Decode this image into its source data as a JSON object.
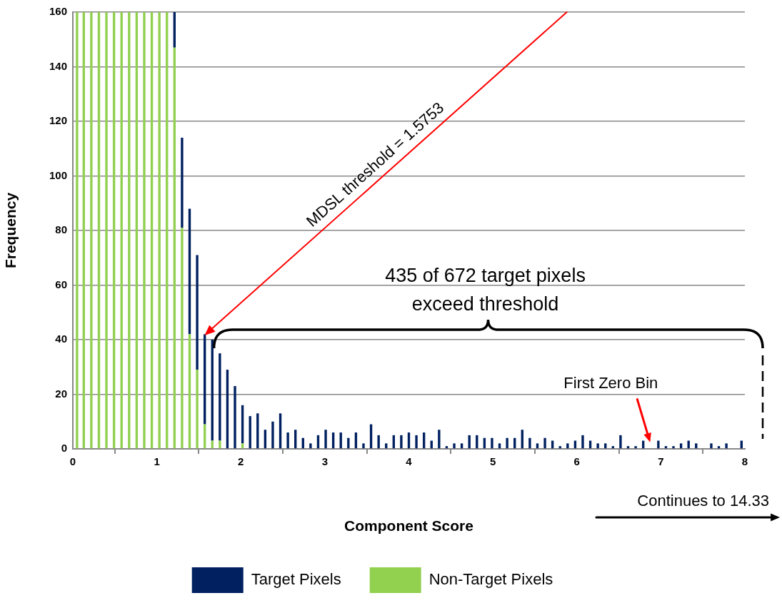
{
  "chart_data": {
    "type": "bar",
    "xlabel": "Component Score",
    "ylabel": "Frequency",
    "x": [
      0.05,
      0.13,
      0.22,
      0.31,
      0.4,
      0.49,
      0.58,
      0.67,
      0.76,
      0.85,
      0.94,
      1.03,
      1.12,
      1.21,
      1.3,
      1.39,
      1.48,
      1.57,
      1.66,
      1.75,
      1.84,
      1.93,
      2.02,
      2.11,
      2.2,
      2.29,
      2.38,
      2.47,
      2.56,
      2.65,
      2.74,
      2.83,
      2.92,
      3.01,
      3.1,
      3.19,
      3.28,
      3.37,
      3.46,
      3.55,
      3.64,
      3.73,
      3.82,
      3.91,
      4.0,
      4.09,
      4.18,
      4.27,
      4.36,
      4.45,
      4.54,
      4.63,
      4.72,
      4.81,
      4.9,
      4.99,
      5.08,
      5.17,
      5.26,
      5.35,
      5.44,
      5.53,
      5.62,
      5.71,
      5.8,
      5.89,
      5.98,
      6.07,
      6.16,
      6.25,
      6.34,
      6.43,
      6.52,
      6.61,
      6.7,
      6.79,
      6.88,
      6.97,
      7.06,
      7.15,
      7.24,
      7.33,
      7.42,
      7.51,
      7.6,
      7.69,
      7.78,
      7.87,
      7.96
    ],
    "stacked": true,
    "series": [
      {
        "name": "Non-Target Pixels",
        "color": "#92d050",
        "values": [
          160,
          160,
          160,
          160,
          160,
          160,
          160,
          160,
          160,
          160,
          160,
          160,
          160,
          147,
          81,
          42,
          29,
          9,
          3,
          3,
          0,
          0,
          2,
          0,
          0,
          0,
          0,
          0,
          0,
          0,
          0,
          0,
          0,
          0,
          0,
          0,
          0,
          0,
          0,
          0,
          0,
          0,
          0,
          0,
          0,
          0,
          0,
          0,
          0,
          0,
          0,
          0,
          0,
          0,
          0,
          0,
          0,
          0,
          0,
          0,
          0,
          0,
          0,
          0,
          0,
          0,
          0,
          0,
          0,
          0,
          0,
          0,
          0,
          0,
          0,
          0,
          0,
          0,
          0,
          0,
          0,
          0,
          0,
          0,
          0,
          0,
          0,
          0,
          0
        ]
      },
      {
        "name": "Target Pixels",
        "color": "#002060",
        "values": [
          0,
          0,
          0,
          0,
          0,
          0,
          0,
          0,
          0,
          0,
          0,
          0,
          0,
          13,
          33,
          46,
          42,
          33,
          37,
          32,
          29,
          23,
          14,
          12,
          13,
          7,
          10,
          13,
          6,
          7,
          4,
          2,
          5,
          7,
          6,
          6,
          4,
          6,
          2,
          9,
          5,
          2,
          5,
          5,
          6,
          5,
          6,
          3,
          7,
          1,
          2,
          2,
          5,
          5,
          4,
          4,
          2,
          4,
          4,
          7,
          4,
          2,
          4,
          3,
          1,
          2,
          3,
          5,
          3,
          2,
          2,
          1,
          5,
          1,
          1,
          3,
          0,
          3,
          1,
          1,
          2,
          3,
          2,
          0,
          2,
          1,
          2,
          0,
          3
        ]
      }
    ],
    "xlim": [
      0,
      8
    ],
    "xticks": [
      0,
      1,
      2,
      3,
      4,
      5,
      6,
      7,
      8
    ],
    "ylim": [
      0,
      160
    ],
    "yticks": [
      0,
      20,
      40,
      60,
      80,
      100,
      120,
      140,
      160
    ],
    "grid": "y",
    "legend": "bottom",
    "annotations": [
      "MDSL threshold = 1.5753",
      "435 of 672 target pixels exceed threshold",
      "First Zero Bin",
      "Continues to 14.33"
    ]
  }
}
